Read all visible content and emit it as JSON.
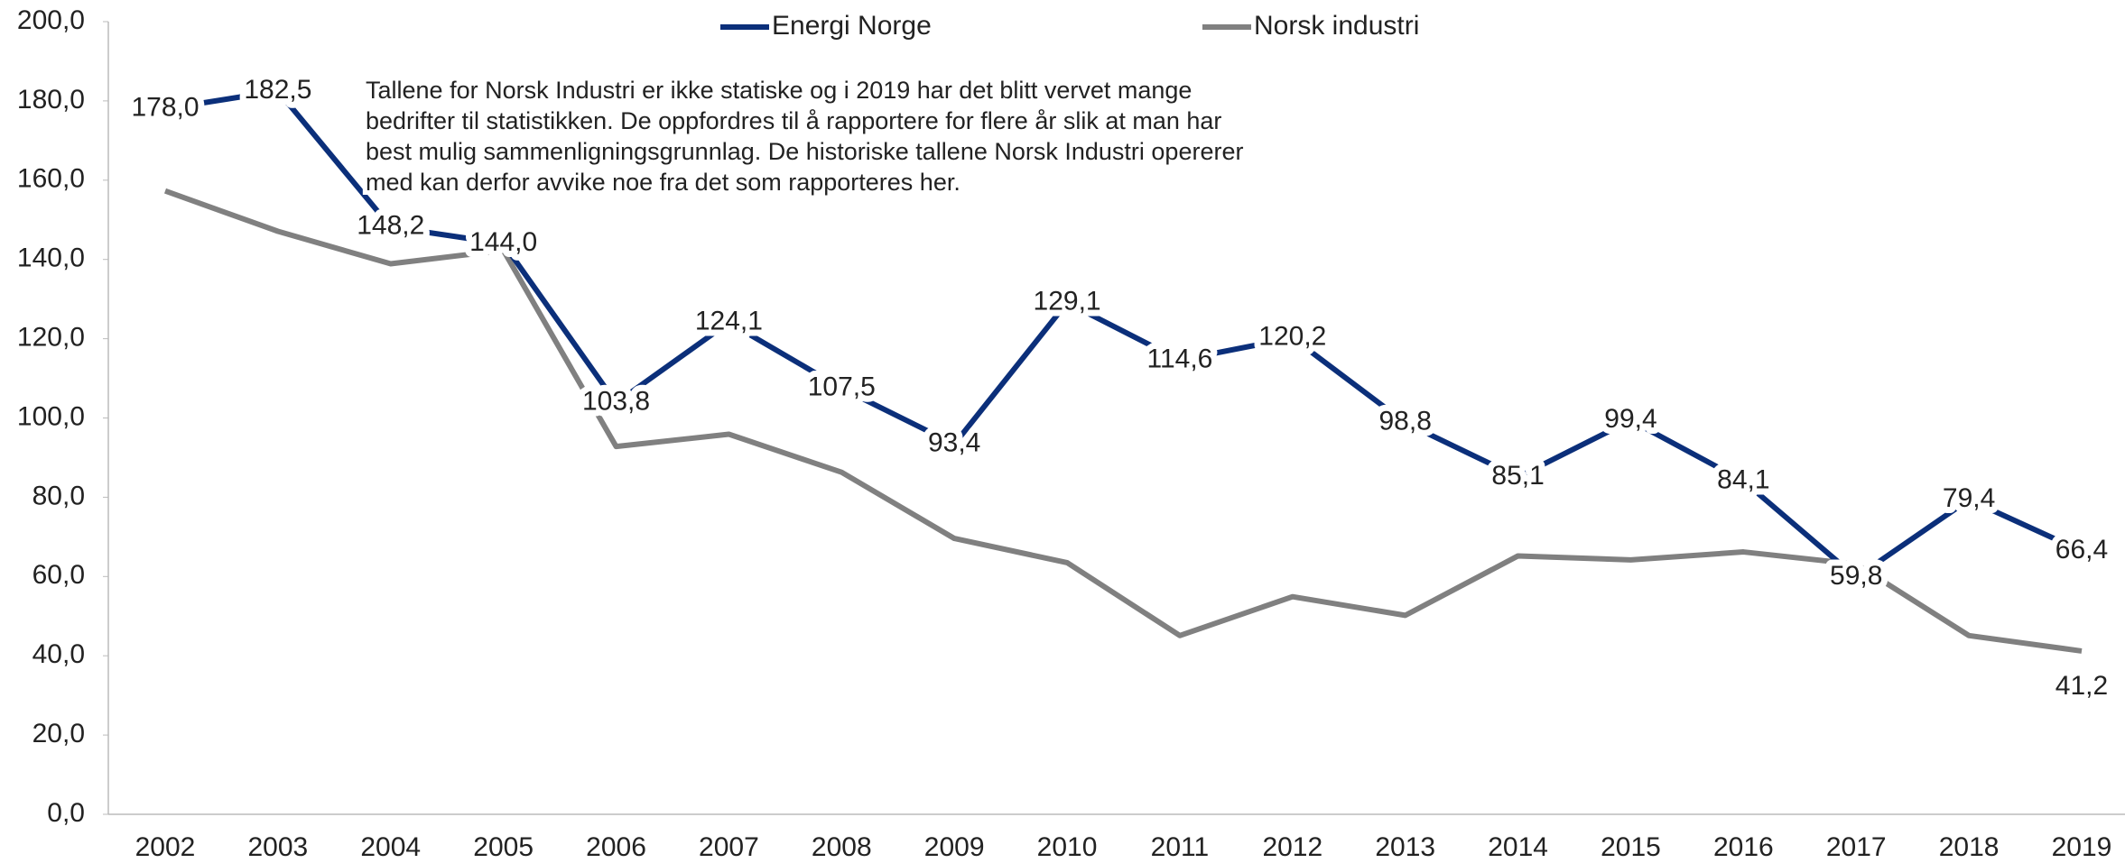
{
  "chart_data": {
    "type": "line",
    "categories": [
      "2002",
      "2003",
      "2004",
      "2005",
      "2006",
      "2007",
      "2008",
      "2009",
      "2010",
      "2011",
      "2012",
      "2013",
      "2014",
      "2015",
      "2016",
      "2017",
      "2018",
      "2019"
    ],
    "series": [
      {
        "name": "Energi Norge",
        "color": "#0b2f7a",
        "values": [
          178.0,
          182.5,
          148.2,
          144.0,
          103.8,
          124.1,
          107.5,
          93.4,
          129.1,
          114.6,
          120.2,
          98.8,
          85.1,
          99.4,
          84.1,
          59.8,
          79.4,
          66.4
        ],
        "value_labels": [
          "178,0",
          "182,5",
          "148,2",
          "144,0",
          "103,8",
          "124,1",
          "107,5",
          "93,4",
          "129,1",
          "114,6",
          "120,2",
          "98,8",
          "85,1",
          "99,4",
          "84,1",
          "59,8",
          "79,4",
          "66,4"
        ]
      },
      {
        "name": "Norsk industri",
        "color": "#808080",
        "values": [
          157.3,
          147.1,
          138.9,
          142.3,
          92.8,
          95.9,
          86.3,
          69.6,
          63.5,
          45.1,
          54.9,
          50.2,
          65.2,
          64.2,
          66.2,
          63.1,
          45.1,
          41.2
        ],
        "value_labels": [
          null,
          null,
          null,
          null,
          null,
          null,
          null,
          null,
          null,
          null,
          null,
          null,
          null,
          null,
          null,
          null,
          null,
          "41,2"
        ]
      }
    ],
    "annotation": [
      "Tallene for Norsk Industri er ikke statiske og i 2019 har det blitt vervet mange",
      "bedrifter til statistikken. De oppfordres til å rapportere for flere år slik at man har",
      "best mulig sammenligningsgrunnlag. De historiske tallene Norsk Industri opererer",
      "med kan derfor avvike noe fra det som rapporteres her."
    ],
    "ylim": [
      0,
      200
    ],
    "yticks": [
      {
        "value": 0,
        "label": "0,0"
      },
      {
        "value": 20,
        "label": "20,0"
      },
      {
        "value": 40,
        "label": "40,0"
      },
      {
        "value": 60,
        "label": "60,0"
      },
      {
        "value": 80,
        "label": "80,0"
      },
      {
        "value": 100,
        "label": "100,0"
      },
      {
        "value": 120,
        "label": "120,0"
      },
      {
        "value": 140,
        "label": "140,0"
      },
      {
        "value": 160,
        "label": "160,0"
      },
      {
        "value": 180,
        "label": "180,0"
      },
      {
        "value": 200,
        "label": "200,0"
      }
    ],
    "legend": "top"
  }
}
